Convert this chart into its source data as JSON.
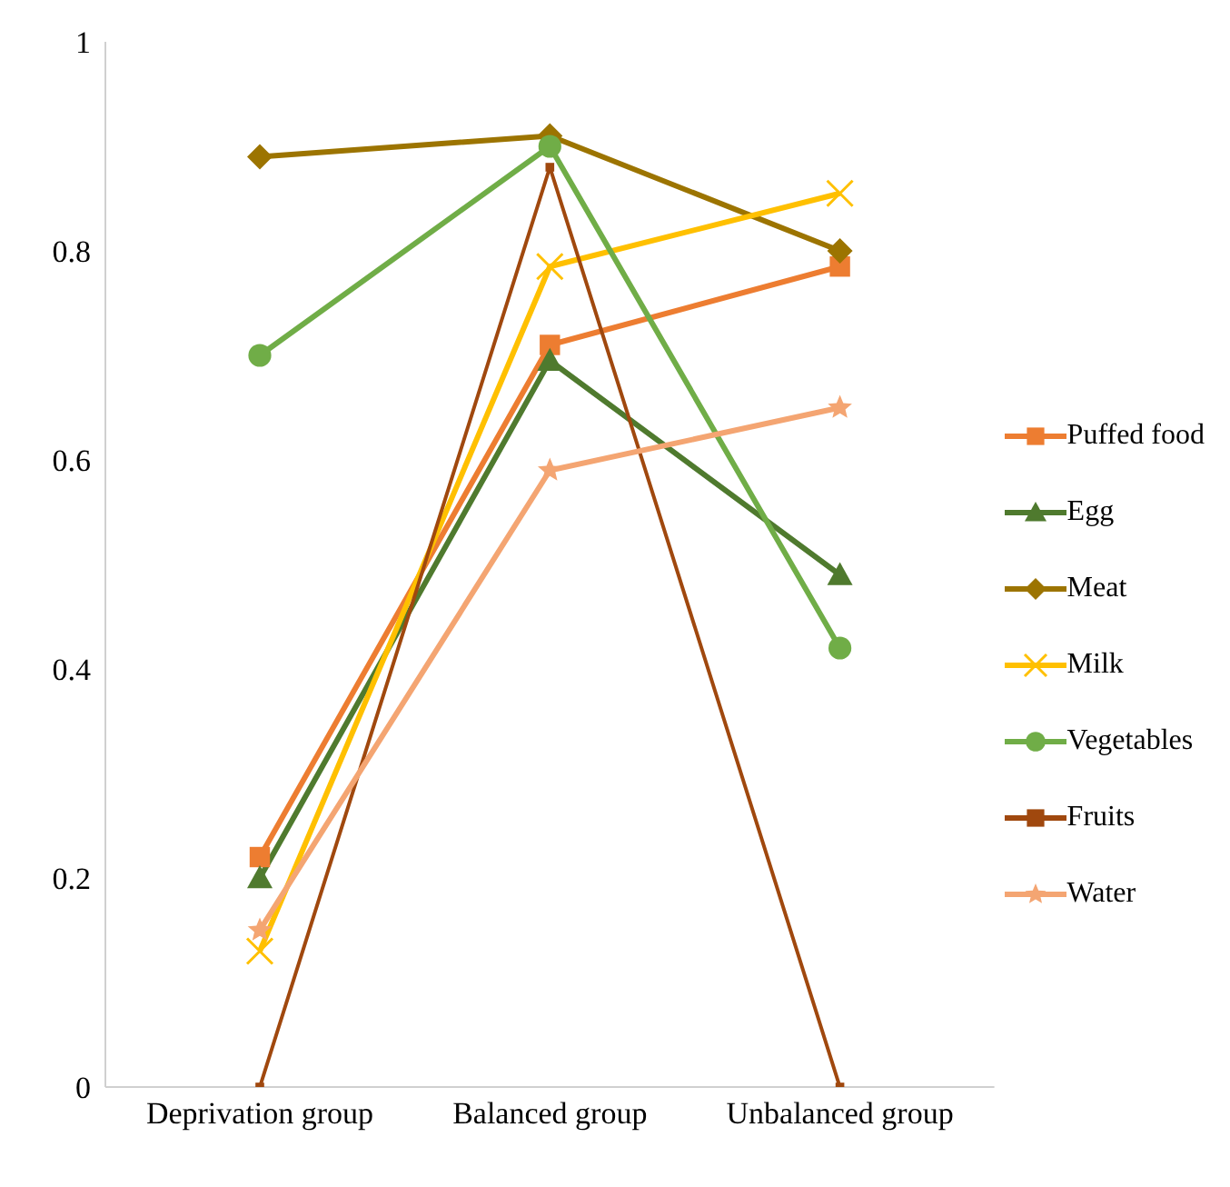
{
  "chart_data": {
    "type": "line",
    "categories": [
      "Deprivation group",
      "Balanced group",
      "Unbalanced group"
    ],
    "ylim": [
      0,
      1
    ],
    "yticks": [
      0,
      0.2,
      0.4,
      0.6,
      0.8,
      1
    ],
    "grid": false,
    "legend": "right",
    "series": [
      {
        "name": "Puffed food",
        "color": "#ed7d31",
        "marker": "square",
        "values": [
          0.22,
          0.71,
          0.785
        ]
      },
      {
        "name": "Egg",
        "color": "#4f7a2e",
        "marker": "triangle",
        "values": [
          0.2,
          0.695,
          0.49
        ]
      },
      {
        "name": "Meat",
        "color": "#9c7400",
        "marker": "diamond",
        "values": [
          0.89,
          0.91,
          0.8
        ]
      },
      {
        "name": "Milk",
        "color": "#ffc000",
        "marker": "cross",
        "values": [
          0.13,
          0.785,
          0.855
        ]
      },
      {
        "name": "Vegetables",
        "color": "#70ad47",
        "marker": "circle",
        "values": [
          0.7,
          0.9,
          0.42
        ]
      },
      {
        "name": "Fruits",
        "color": "#a0480e",
        "marker": "square",
        "values": [
          0,
          0.88,
          0
        ]
      },
      {
        "name": "Water",
        "color": "#f4a572",
        "marker": "star",
        "values": [
          0.15,
          0.59,
          0.65
        ]
      }
    ]
  }
}
